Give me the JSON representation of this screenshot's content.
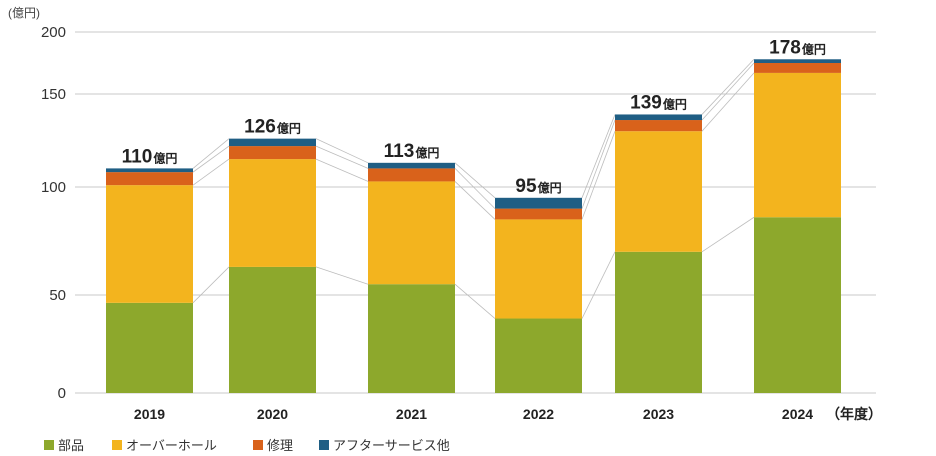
{
  "chart_data": {
    "type": "bar",
    "stacked": true,
    "y_unit": "(億円)",
    "x_unit": "（年度）",
    "categories": [
      "2019",
      "2020",
      "2021",
      "2022",
      "2023",
      "2024"
    ],
    "yticks": [
      0,
      50,
      100,
      150,
      200
    ],
    "ylim": [
      0,
      200
    ],
    "grid": true,
    "legend": "bottom-left",
    "series": [
      {
        "name": "部品",
        "color": "#8DA82C",
        "values": [
          46,
          63,
          55,
          38,
          70,
          86
        ]
      },
      {
        "name": "オーバーホール",
        "color": "#F3B41E",
        "values": [
          55,
          52,
          48,
          47,
          60,
          81
        ]
      },
      {
        "name": "修理",
        "color": "#D9621B",
        "values": [
          7,
          7,
          7,
          5,
          6,
          8
        ]
      },
      {
        "name": "アフターサービス他",
        "color": "#1F5E84",
        "values": [
          2,
          4,
          3,
          5,
          3,
          3
        ]
      }
    ],
    "totals": [
      110,
      126,
      113,
      95,
      139,
      178
    ],
    "total_unit": "億円"
  }
}
